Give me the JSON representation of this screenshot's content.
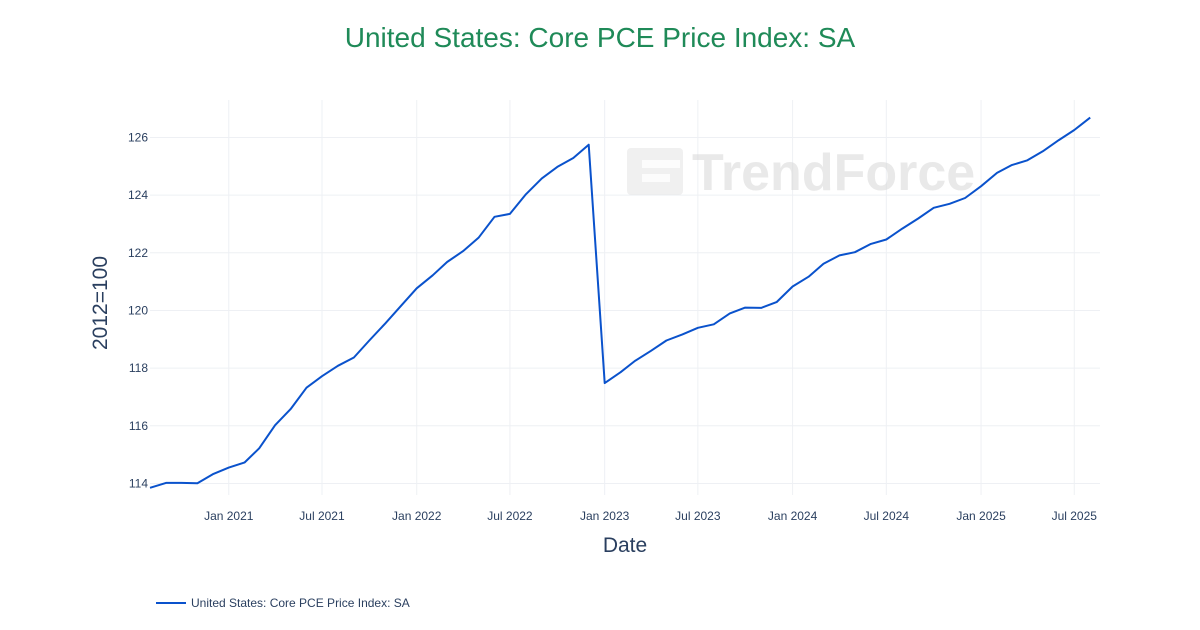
{
  "chart_data": {
    "type": "line",
    "title": "United States: Core PCE Price Index: SA",
    "xlabel": "Date",
    "ylabel": "2012=100",
    "ylim": [
      113.6,
      127.3
    ],
    "xlim": [
      "2020-08-01",
      "2025-08-20"
    ],
    "yticks": [
      114,
      116,
      118,
      120,
      122,
      124,
      126
    ],
    "xticks": [
      {
        "date": "2021-01-01",
        "label": "Jan 2021"
      },
      {
        "date": "2021-07-01",
        "label": "Jul 2021"
      },
      {
        "date": "2022-01-01",
        "label": "Jan 2022"
      },
      {
        "date": "2022-07-01",
        "label": "Jul 2022"
      },
      {
        "date": "2023-01-01",
        "label": "Jan 2023"
      },
      {
        "date": "2023-07-01",
        "label": "Jul 2023"
      },
      {
        "date": "2024-01-01",
        "label": "Jan 2024"
      },
      {
        "date": "2024-07-01",
        "label": "Jul 2024"
      },
      {
        "date": "2025-01-01",
        "label": "Jan 2025"
      },
      {
        "date": "2025-07-01",
        "label": "Jul 2025"
      }
    ],
    "grid": true,
    "legend_position": "bottom-left",
    "series": [
      {
        "name": "United States: Core PCE Price Index: SA",
        "color": "#0a52cc",
        "x": [
          "2020-08-01",
          "2020-09-01",
          "2020-10-01",
          "2020-11-01",
          "2020-12-01",
          "2021-01-01",
          "2021-02-01",
          "2021-03-01",
          "2021-04-01",
          "2021-05-01",
          "2021-06-01",
          "2021-07-01",
          "2021-08-01",
          "2021-09-01",
          "2021-10-01",
          "2021-11-01",
          "2021-12-01",
          "2022-01-01",
          "2022-02-01",
          "2022-03-01",
          "2022-04-01",
          "2022-05-01",
          "2022-06-01",
          "2022-07-01",
          "2022-08-01",
          "2022-09-01",
          "2022-10-01",
          "2022-11-01",
          "2022-12-01",
          "2023-01-01",
          "2023-02-01",
          "2023-03-01",
          "2023-04-01",
          "2023-05-01",
          "2023-06-01",
          "2023-07-01",
          "2023-08-01",
          "2023-09-01",
          "2023-10-01",
          "2023-11-01",
          "2023-12-01",
          "2024-01-01",
          "2024-02-01",
          "2024-03-01",
          "2024-04-01",
          "2024-05-01",
          "2024-06-01",
          "2024-07-01",
          "2024-08-01",
          "2024-09-01",
          "2024-10-01",
          "2024-11-01",
          "2024-12-01",
          "2025-01-01",
          "2025-02-01",
          "2025-03-01",
          "2025-04-01",
          "2025-05-01",
          "2025-06-01",
          "2025-07-01",
          "2025-08-01"
        ],
        "values": [
          113.85,
          114.02,
          114.02,
          114.01,
          114.32,
          114.55,
          114.73,
          115.22,
          116.02,
          116.58,
          117.32,
          117.72,
          118.08,
          118.37,
          118.96,
          119.55,
          120.15,
          120.77,
          121.22,
          121.68,
          122.06,
          122.52,
          123.25,
          123.35,
          124.03,
          124.58,
          124.98,
          125.29,
          125.75,
          117.48,
          117.86,
          118.25,
          118.6,
          118.96,
          119.17,
          119.4,
          119.52,
          119.9,
          120.1,
          120.09,
          120.29,
          120.83,
          121.17,
          121.62,
          121.91,
          122.02,
          122.31,
          122.46,
          122.84,
          123.19,
          123.56,
          123.7,
          123.9,
          124.31,
          124.77,
          125.04,
          125.21,
          125.52,
          125.91,
          126.26,
          126.69
        ]
      }
    ]
  },
  "watermark": {
    "text": "TrendForce"
  }
}
